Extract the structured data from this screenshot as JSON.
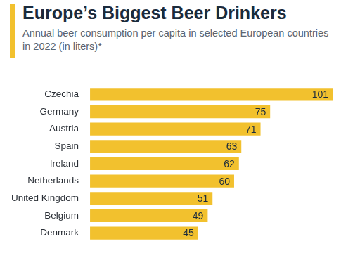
{
  "chart_data": {
    "type": "bar",
    "orientation": "horizontal",
    "title": "Europe’s Biggest Beer Drinkers",
    "subtitle": "Annual beer consumption per capita in selected European countries in 2022 (in liters)*",
    "categories": [
      "Czechia",
      "Germany",
      "Austria",
      "Spain",
      "Ireland",
      "Netherlands",
      "United Kingdom",
      "Belgium",
      "Denmark"
    ],
    "values": [
      101,
      75,
      71,
      63,
      62,
      60,
      51,
      49,
      45
    ],
    "color": "#f2c12e",
    "xlim": [
      0,
      101
    ],
    "grid": false,
    "data_labels": true,
    "tick_labels": "y"
  }
}
